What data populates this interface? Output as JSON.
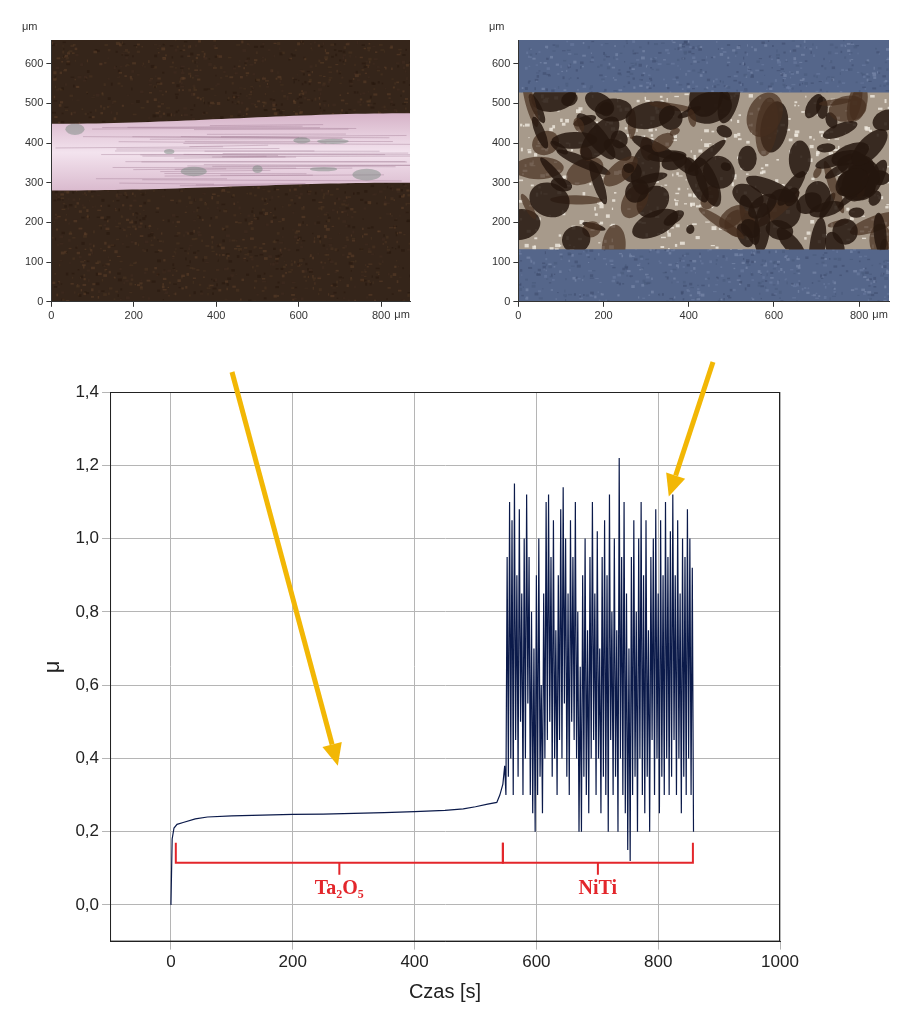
{
  "chart_data": [
    {
      "type": "image",
      "x_label": "μm",
      "y_label": "μm",
      "xlim": [
        0,
        870
      ],
      "ylim": [
        0,
        660
      ],
      "xticks": [
        0,
        200,
        400,
        600,
        800
      ],
      "yticks": [
        0,
        100,
        200,
        300,
        400,
        500,
        600
      ]
    },
    {
      "type": "image",
      "x_label": "μm",
      "y_label": "μm",
      "xlim": [
        0,
        870
      ],
      "ylim": [
        0,
        660
      ],
      "xticks": [
        0,
        200,
        400,
        600,
        800
      ],
      "yticks": [
        0,
        100,
        200,
        300,
        400,
        500,
        600
      ]
    },
    {
      "type": "line",
      "x_label": "Czas [s]",
      "y_label": "μ",
      "grid": true,
      "color": "#0b1a4a",
      "xlim": [
        -100,
        1000
      ],
      "xticks": [
        0,
        200,
        400,
        600,
        800,
        1000
      ],
      "ylim": [
        -0.1,
        1.4
      ],
      "yticks": [
        {
          "value": 0,
          "label": "0,0"
        },
        {
          "value": 0.2,
          "label": "0,2"
        },
        {
          "value": 0.4,
          "label": "0,4"
        },
        {
          "value": 0.6,
          "label": "0,6"
        },
        {
          "value": 0.8,
          "label": "0,8"
        },
        {
          "value": 1.0,
          "label": "1,0"
        },
        {
          "value": 1.2,
          "label": "1,2"
        },
        {
          "value": 1.4,
          "label": "1,4"
        }
      ],
      "x": [
        0,
        2,
        5,
        10,
        20,
        40,
        60,
        100,
        150,
        200,
        250,
        300,
        350,
        400,
        450,
        480,
        500,
        520,
        535,
        540,
        545,
        548,
        550,
        552,
        554,
        556,
        558,
        560,
        562,
        564,
        566,
        568,
        570,
        572,
        574,
        576,
        578,
        580,
        582,
        584,
        586,
        588,
        590,
        592,
        594,
        596,
        598,
        600,
        602,
        604,
        606,
        608,
        610,
        612,
        614,
        616,
        618,
        620,
        622,
        624,
        626,
        628,
        630,
        632,
        634,
        636,
        638,
        640,
        642,
        644,
        646,
        648,
        650,
        652,
        654,
        656,
        658,
        660,
        662,
        664,
        666,
        668,
        670,
        672,
        674,
        676,
        678,
        680,
        682,
        684,
        686,
        688,
        690,
        692,
        694,
        696,
        698,
        700,
        702,
        704,
        706,
        708,
        710,
        712,
        714,
        716,
        718,
        720,
        722,
        724,
        726,
        728,
        730,
        732,
        734,
        736,
        738,
        740,
        742,
        744,
        746,
        748,
        750,
        752,
        754,
        756,
        758,
        760,
        762,
        764,
        766,
        768,
        770,
        772,
        774,
        776,
        778,
        780,
        782,
        784,
        786,
        788,
        790,
        792,
        794,
        796,
        798,
        800,
        802,
        804,
        806,
        808,
        810,
        812,
        814,
        816,
        818,
        820,
        822,
        824,
        826,
        828,
        830,
        832,
        834,
        836,
        838,
        840,
        842,
        844,
        846,
        848,
        850,
        852,
        854,
        856,
        858
      ],
      "values": [
        0.0,
        0.18,
        0.21,
        0.22,
        0.225,
        0.235,
        0.24,
        0.243,
        0.245,
        0.247,
        0.248,
        0.25,
        0.252,
        0.255,
        0.258,
        0.262,
        0.268,
        0.275,
        0.28,
        0.3,
        0.33,
        0.38,
        0.3,
        0.95,
        0.35,
        1.1,
        0.4,
        1.05,
        0.3,
        1.15,
        0.45,
        0.9,
        0.35,
        1.08,
        0.5,
        0.85,
        0.3,
        1.0,
        0.4,
        1.12,
        0.55,
        0.95,
        0.3,
        0.8,
        0.25,
        0.7,
        0.2,
        0.9,
        0.3,
        1.0,
        0.35,
        0.6,
        0.25,
        0.85,
        0.4,
        1.1,
        0.45,
        1.12,
        0.5,
        0.95,
        0.35,
        1.05,
        0.4,
        0.75,
        0.3,
        0.9,
        0.45,
        1.08,
        0.4,
        1.14,
        0.55,
        1.0,
        0.35,
        0.85,
        0.3,
        1.05,
        0.5,
        0.95,
        0.45,
        1.1,
        0.4,
        0.8,
        0.2,
        0.65,
        0.2,
        0.9,
        0.35,
        1.0,
        0.3,
        0.75,
        0.25,
        0.95,
        0.4,
        1.1,
        0.45,
        0.85,
        0.3,
        1.02,
        0.4,
        0.7,
        0.25,
        0.95,
        0.35,
        1.05,
        0.3,
        0.9,
        0.2,
        1.12,
        0.45,
        0.8,
        0.3,
        1.0,
        0.35,
        0.75,
        0.2,
        1.22,
        0.4,
        0.95,
        0.3,
        1.1,
        0.25,
        0.85,
        0.15,
        0.7,
        0.12,
        0.95,
        0.3,
        1.05,
        0.35,
        0.8,
        0.2,
        1.0,
        0.4,
        1.1,
        0.3,
        0.9,
        0.25,
        1.05,
        0.35,
        0.75,
        0.2,
        0.95,
        0.45,
        1.0,
        0.3,
        1.08,
        0.4,
        0.85,
        0.25,
        1.05,
        0.35,
        0.9,
        0.3,
        1.1,
        0.4,
        0.95,
        0.3,
        1.02,
        0.35,
        1.12,
        0.45,
        0.9,
        0.3,
        1.05,
        0.4,
        0.85,
        0.25,
        1.0,
        0.35,
        0.95,
        0.3,
        1.08,
        0.4,
        1.0,
        0.3,
        0.92,
        0.2
      ],
      "annotations": [
        {
          "text": "Ta₂O₅",
          "x0": 8,
          "x1": 545,
          "y": 0.115,
          "color": "#e3262b"
        },
        {
          "text": "NiTi",
          "x0": 545,
          "x1": 857,
          "y": 0.115,
          "color": "#e3262b"
        }
      ]
    }
  ]
}
